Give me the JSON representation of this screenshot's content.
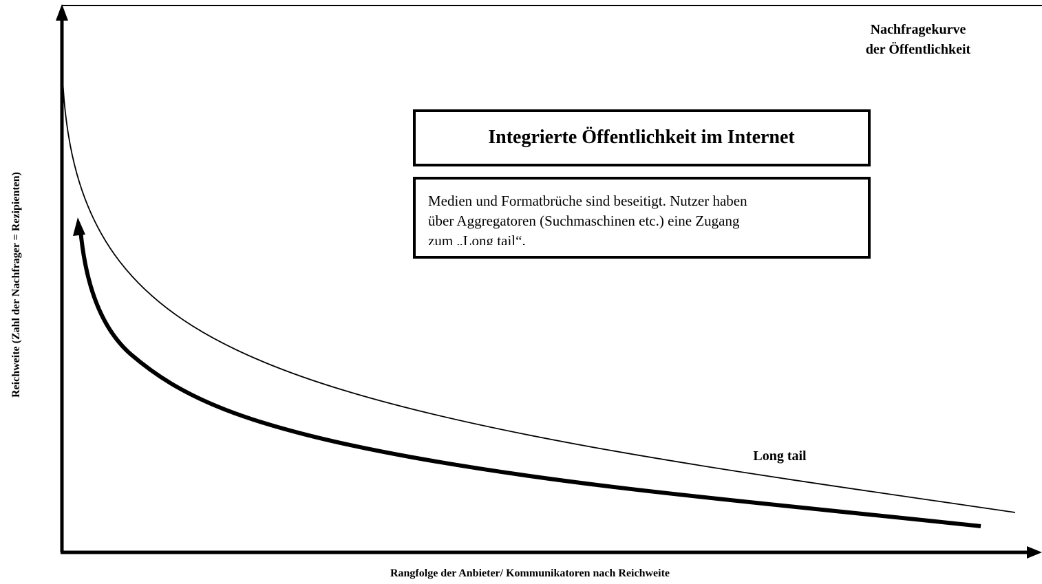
{
  "diagram": {
    "curve_label": [
      "Nachfragekurve",
      "der Öffentlichkeit"
    ],
    "title_box": "Integrierte Öffentlichkeit im Internet",
    "text_box": [
      "Medien und Formatbrüche sind beseitigt. Nutzer haben",
      "über Aggregatoren (Suchmaschinen etc.) eine Zugang",
      "zum „Long tail“."
    ],
    "long_tail_label": "Long tail",
    "y_axis_label": "Reichweite (Zahl der Nachfrager = Rezipienten)",
    "x_axis_label": "Rangfolge der Anbieter/ Kommunikatoren nach Reichweite"
  }
}
